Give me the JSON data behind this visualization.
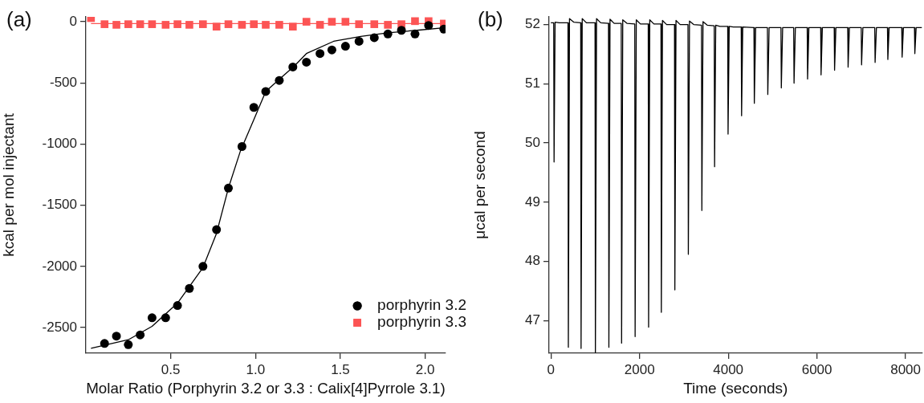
{
  "chart_data": [
    {
      "type": "scatter",
      "title": "(a)",
      "xlabel": "Molar Ratio (Porphyrin 3.2 or 3.3 : Calix[4]Pyrrole 3.1)",
      "ylabel": "kcal per mol injectant",
      "xlim": [
        0,
        2.12
      ],
      "xticks": [
        0.5,
        {
          "value": 1,
          "label": "1.0"
        },
        1.5,
        {
          "value": 2,
          "label": "2.0"
        }
      ],
      "ylim": [
        -2710,
        40
      ],
      "yticks": [
        0,
        -500,
        -1000,
        -1500,
        -2000,
        -2500
      ],
      "legend": "bottom right",
      "series": [
        {
          "name": "porphyrin 3.2",
          "color": "#000000",
          "marker": "circle",
          "x": [
            0.11,
            0.18,
            0.25,
            0.32,
            0.39,
            0.47,
            0.54,
            0.61,
            0.69,
            0.77,
            0.84,
            0.92,
            0.99,
            1.06,
            1.14,
            1.22,
            1.3,
            1.38,
            1.45,
            1.53,
            1.61,
            1.7,
            1.78,
            1.86,
            1.94,
            2.02,
            2.11
          ],
          "values": [
            -2630,
            -2570,
            -2640,
            -2560,
            -2420,
            -2420,
            -2320,
            -2180,
            -2000,
            -1700,
            -1360,
            -1020,
            -700,
            -570,
            -480,
            -370,
            -330,
            -260,
            -230,
            -200,
            -160,
            -130,
            -100,
            -70,
            -100,
            -30,
            -60
          ]
        },
        {
          "name": "porphyrin 3.3",
          "color": "#fc5454",
          "marker": "square",
          "x": [
            0.03,
            0.11,
            0.18,
            0.25,
            0.32,
            0.39,
            0.47,
            0.54,
            0.61,
            0.69,
            0.77,
            0.84,
            0.92,
            0.99,
            1.06,
            1.14,
            1.22,
            1.3,
            1.38,
            1.45,
            1.53,
            1.61,
            1.7,
            1.78,
            1.86,
            1.94,
            2.02,
            2.11
          ],
          "values": [
            30,
            -20,
            -25,
            -20,
            -20,
            -20,
            -25,
            -20,
            -25,
            -20,
            -40,
            -20,
            -25,
            -20,
            -25,
            -25,
            -40,
            0,
            -25,
            0,
            0,
            -20,
            -20,
            -25,
            -20,
            5,
            5,
            -15
          ]
        },
        {
          "type": "line",
          "color": "#000000",
          "x": [
            0.03,
            0.25,
            0.39,
            0.54,
            0.69,
            0.77,
            0.84,
            0.91,
            0.99,
            1.06,
            1.14,
            1.23,
            1.3,
            1.46,
            1.62,
            1.78,
            1.95,
            2.11
          ],
          "values": [
            -2670,
            -2600,
            -2490,
            -2300,
            -2010,
            -1730,
            -1360,
            -1060,
            -800,
            -570,
            -470,
            -360,
            -260,
            -160,
            -120,
            -90,
            -70,
            -50
          ]
        },
        {
          "type": "line",
          "color": "#fc5454",
          "x": [
            0.03,
            2.11
          ],
          "values": [
            -15,
            -15
          ]
        }
      ]
    },
    {
      "type": "line",
      "title": "(b)",
      "xlabel": "Time (seconds)",
      "ylabel": "μcal per second",
      "xlim": [
        -40,
        8370
      ],
      "xticks": [
        0,
        2000,
        4000,
        6000,
        8000
      ],
      "ylim": [
        46.45,
        52.13
      ],
      "yticks": [
        47,
        48,
        49,
        50,
        51,
        52
      ],
      "series": [
        {
          "color": "#000000",
          "x": [
            0,
            64,
            72,
            95,
            190,
            386,
            394,
            420,
            520,
            673,
            681,
            707,
            801,
            996,
            1004,
            1030,
            1124,
            1300,
            1308,
            1334,
            1428,
            1587,
            1595,
            1621,
            1715,
            1892,
            1900,
            1926,
            2020,
            2196,
            2204,
            2230,
            2324,
            2483,
            2491,
            2517,
            2611,
            2788,
            2796,
            2822,
            2916,
            3092,
            3100,
            3126,
            3220,
            3397,
            3405,
            3431,
            3525,
            3684,
            3692,
            3718,
            3812,
            3988,
            3996,
            4022,
            4116,
            4293,
            4301,
            4327,
            4580,
            4588,
            4618,
            4884,
            4892,
            4922,
            5189,
            5197,
            5227,
            5476,
            5484,
            5514,
            5781,
            5789,
            5819,
            6085,
            6093,
            6123,
            6390,
            6398,
            6428,
            6695,
            6703,
            6733,
            6999,
            7007,
            7037,
            7304,
            7312,
            7342,
            7591,
            7599,
            7629,
            7913,
            7921,
            7951,
            8200,
            8208,
            8238,
            8370
          ],
          "values": [
            52.03,
            52.03,
            49.68,
            52.04,
            52.03,
            52.03,
            46.55,
            52.1,
            52.04,
            52.03,
            46.53,
            52.1,
            52.03,
            52.03,
            46.46,
            52.1,
            52.03,
            52.02,
            46.55,
            52.09,
            52.02,
            52.02,
            46.62,
            52.08,
            52.02,
            52.01,
            46.73,
            52.08,
            52.01,
            52.01,
            46.89,
            52.08,
            52.01,
            52.01,
            47.14,
            52.07,
            52.0,
            52.0,
            47.52,
            52.07,
            52.0,
            52.0,
            48.12,
            52.06,
            52.0,
            51.99,
            48.86,
            52.05,
            51.99,
            51.98,
            49.6,
            51.99,
            51.97,
            51.97,
            50.15,
            51.97,
            51.96,
            51.96,
            50.46,
            51.96,
            51.95,
            50.67,
            51.95,
            51.95,
            50.82,
            51.95,
            51.95,
            50.93,
            51.95,
            51.95,
            51.01,
            51.95,
            51.95,
            51.08,
            51.95,
            51.95,
            51.15,
            51.95,
            51.95,
            51.23,
            51.95,
            51.95,
            51.28,
            51.95,
            51.95,
            51.32,
            51.95,
            51.95,
            51.36,
            51.95,
            51.95,
            51.41,
            51.95,
            51.95,
            51.45,
            51.95,
            51.95,
            51.51,
            51.95,
            51.95
          ]
        }
      ]
    }
  ]
}
